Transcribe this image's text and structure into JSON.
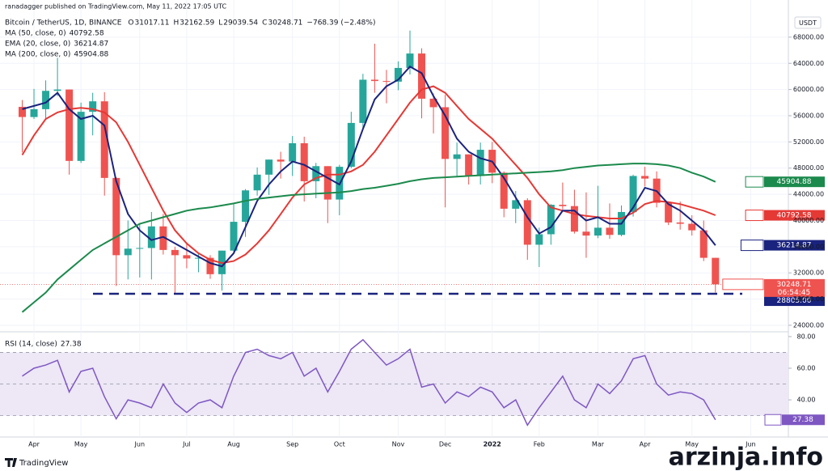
{
  "header": {
    "publisher": "ranadagger published on TradingView.com, May 11, 2022 17:05 UTC",
    "symbol": "Bitcoin / TetherUS, 1D, BINANCE",
    "ohlc": [
      {
        "label": "O",
        "value": "31017.11"
      },
      {
        "label": "H",
        "value": "32162.59"
      },
      {
        "label": "L",
        "value": "29039.54"
      },
      {
        "label": "C",
        "value": "30248.71"
      }
    ],
    "change": "−768.39 (−2.48%)",
    "currency": "USDT",
    "logo": "TradingView",
    "watermark": "arzinja.info"
  },
  "chart_data": [
    {
      "type": "candlestick",
      "categories": [
        null,
        "Apr",
        null,
        null,
        null,
        "May",
        null,
        null,
        null,
        null,
        "Jun",
        null,
        null,
        null,
        "Jul",
        null,
        null,
        null,
        "Aug",
        null,
        null,
        null,
        null,
        "Sep",
        null,
        null,
        null,
        "Oct",
        null,
        null,
        null,
        null,
        "Nov",
        null,
        null,
        null,
        "Dec",
        null,
        null,
        null,
        "2022",
        null,
        null,
        null,
        "Feb",
        null,
        null,
        null,
        null,
        "Mar",
        null,
        null,
        null,
        "Apr",
        null,
        null,
        null,
        "May",
        null,
        null,
        null,
        null,
        "Jun"
      ],
      "open": [
        57350,
        55800,
        57000,
        59800,
        60000,
        49100,
        56600,
        58200,
        46500,
        34700,
        35700,
        35800,
        39100,
        35500,
        34700,
        34200,
        34300,
        31800,
        35400,
        39800,
        44600,
        47000,
        49300,
        49000,
        51800,
        46000,
        48300,
        43200,
        48200,
        54900,
        61500,
        61300,
        61200,
        63300,
        65500,
        58600,
        57300,
        49400,
        50100,
        46800,
        50800,
        47300,
        41800,
        43100,
        36300,
        37900,
        42400,
        42200,
        38300,
        37700,
        38900,
        37800,
        41300,
        46800,
        46400,
        42700,
        39700,
        39500,
        38500,
        34300,
        null,
        null,
        null
      ],
      "high": [
        58400,
        60100,
        61400,
        64850,
        60000,
        58000,
        59500,
        59600,
        46600,
        40000,
        39500,
        41300,
        41000,
        36000,
        36600,
        35100,
        34700,
        35400,
        42600,
        44800,
        48100,
        49300,
        50500,
        52900,
        52800,
        48800,
        48300,
        48500,
        56600,
        62400,
        67000,
        63000,
        64300,
        69000,
        66300,
        59400,
        59200,
        51900,
        50100,
        51900,
        52000,
        47500,
        44500,
        43400,
        38900,
        42500,
        45800,
        44700,
        44300,
        45300,
        42600,
        42300,
        47000,
        48200,
        47500,
        42400,
        42900,
        40800,
        40000,
        34300,
        null,
        null,
        null
      ],
      "low": [
        50400,
        55500,
        55500,
        59000,
        47000,
        48800,
        53000,
        43800,
        30000,
        31000,
        31300,
        31000,
        34800,
        28800,
        32700,
        32100,
        31100,
        29300,
        35200,
        37500,
        43800,
        43900,
        46400,
        46800,
        42900,
        43400,
        39600,
        40800,
        48000,
        53900,
        59500,
        57900,
        59900,
        62300,
        55600,
        53300,
        42000,
        46700,
        45500,
        45500,
        45700,
        40500,
        39600,
        34000,
        32900,
        36300,
        41700,
        38000,
        34300,
        37300,
        37200,
        37600,
        40600,
        45200,
        42000,
        39300,
        38600,
        37700,
        33800,
        29000,
        null,
        null,
        null
      ],
      "close": [
        55800,
        57000,
        59800,
        60000,
        49100,
        56600,
        58200,
        46500,
        34700,
        35700,
        35800,
        39100,
        35500,
        34700,
        34200,
        34300,
        31800,
        35400,
        39800,
        44600,
        47000,
        49300,
        49000,
        51800,
        46000,
        48300,
        43200,
        48200,
        54900,
        61500,
        61300,
        61200,
        63300,
        65500,
        58600,
        57300,
        49400,
        50100,
        46800,
        50800,
        47300,
        41800,
        43100,
        36300,
        37900,
        42400,
        42200,
        38300,
        37700,
        38900,
        37800,
        41300,
        46800,
        46400,
        42700,
        39700,
        39500,
        38500,
        34300,
        30248.71,
        null,
        null,
        null
      ],
      "up_color": "#26a69a",
      "down_color": "#ef5350",
      "series": [
        {
          "name": "MA (50, close, 0)",
          "legend_value": "40792.58",
          "color": "#e53935",
          "values": [
            50000,
            53000,
            55500,
            56500,
            57000,
            57200,
            57000,
            56500,
            55000,
            52000,
            48500,
            45000,
            41500,
            38500,
            36500,
            35000,
            34000,
            33500,
            33800,
            34800,
            36500,
            38500,
            41000,
            43500,
            45500,
            46500,
            47000,
            47000,
            47500,
            48500,
            50500,
            53000,
            55500,
            58000,
            60000,
            60500,
            59500,
            57500,
            55500,
            54000,
            52500,
            50500,
            48500,
            46500,
            44000,
            42000,
            41500,
            41000,
            40700,
            40500,
            40300,
            40300,
            41200,
            42500,
            43000,
            42800,
            42500,
            42000,
            41500,
            40792.58,
            null,
            null,
            null
          ]
        },
        {
          "name": "EMA (20, close, 0)",
          "legend_value": "36214.87",
          "color": "#1a237e",
          "values": [
            57000,
            57500,
            58000,
            59500,
            57000,
            55500,
            56000,
            54500,
            46000,
            41000,
            38500,
            37000,
            37500,
            36500,
            35500,
            34500,
            33500,
            33000,
            35000,
            39000,
            43000,
            45500,
            47500,
            49000,
            48500,
            47500,
            46500,
            45500,
            49000,
            54000,
            58500,
            60500,
            61500,
            63500,
            62500,
            59000,
            56000,
            52500,
            50500,
            49500,
            49000,
            46500,
            43500,
            40500,
            38000,
            39000,
            41500,
            41500,
            40000,
            40500,
            39500,
            39500,
            42000,
            45000,
            44500,
            42500,
            41500,
            40000,
            38500,
            36214.87,
            null,
            null,
            null
          ]
        },
        {
          "name": "MA (200, close, 0)",
          "legend_value": "45904.88",
          "color": "#1b8a4c",
          "values": [
            26000,
            27500,
            29000,
            31000,
            32500,
            34000,
            35500,
            36500,
            37500,
            38500,
            39500,
            40000,
            40500,
            41000,
            41500,
            41800,
            42000,
            42300,
            42600,
            43000,
            43300,
            43500,
            43700,
            43900,
            44000,
            44100,
            44200,
            44300,
            44500,
            44800,
            45000,
            45300,
            45600,
            46000,
            46300,
            46500,
            46600,
            46700,
            46800,
            46900,
            47000,
            47100,
            47200,
            47300,
            47400,
            47500,
            47700,
            48000,
            48200,
            48400,
            48500,
            48600,
            48700,
            48700,
            48600,
            48400,
            48000,
            47300,
            46700,
            45904.88,
            null,
            null,
            null
          ]
        }
      ],
      "ylim": [
        23250,
        71200
      ],
      "yticks": [
        {
          "value": 24000,
          "label": "24000.00"
        },
        {
          "value": 28000,
          "label": "28000.00"
        },
        {
          "value": 32000,
          "label": "32000.00"
        },
        {
          "value": 36000,
          "label": "36000.00"
        },
        {
          "value": 40000,
          "label": "40000.00"
        },
        {
          "value": 44000,
          "label": "44000.00"
        },
        {
          "value": 48000,
          "label": "48000.00"
        },
        {
          "value": 52000,
          "label": "52000.00"
        },
        {
          "value": 56000,
          "label": "56000.00"
        },
        {
          "value": 60000,
          "label": "60000.00"
        },
        {
          "value": 64000,
          "label": "64000.00"
        },
        {
          "value": 68000,
          "label": "68000.00"
        }
      ],
      "price_tags": [
        {
          "name": "MA",
          "value": 45904.88,
          "label": "45904.88",
          "color": "#1b8a4c"
        },
        {
          "name": "MA",
          "value": 40792.58,
          "label": "40792.58",
          "color": "#e53935"
        },
        {
          "name": "EMA",
          "value": 36214.87,
          "label": "36214.87",
          "color": "#1a237e"
        },
        {
          "name": "BTCUSDT",
          "value": 30248.71,
          "label": "30248.71",
          "countdown": "06:54:45",
          "color": "#ef5350"
        }
      ],
      "support": {
        "value": 28805,
        "label": "28805.00",
        "color": "#1a237e"
      },
      "grid": true
    },
    {
      "type": "line",
      "title": "RSI (14, close)",
      "legend_value": "27.38",
      "series": [
        {
          "name": "RSI",
          "color": "#7e57c2",
          "values": [
            55,
            60,
            62,
            65,
            45,
            58,
            60,
            42,
            28,
            40,
            38,
            35,
            50,
            38,
            32,
            38,
            40,
            35,
            55,
            70,
            72,
            68,
            66,
            70,
            55,
            60,
            45,
            58,
            72,
            78,
            70,
            62,
            66,
            72,
            48,
            50,
            38,
            45,
            42,
            48,
            45,
            35,
            40,
            24,
            35,
            45,
            55,
            40,
            35,
            50,
            44,
            52,
            66,
            68,
            50,
            43,
            45,
            44,
            40,
            27.38,
            null,
            null,
            null
          ]
        }
      ],
      "band": [
        30,
        70
      ],
      "midline": 50,
      "band_color": "#ede7f6",
      "tag": {
        "name": "RSI",
        "value": 27.38,
        "label": "27.38",
        "color": "#7e57c2"
      },
      "ylim": [
        16.5,
        82
      ],
      "yticks": [
        {
          "value": 40,
          "label": "40.00"
        },
        {
          "value": 60,
          "label": "60.00"
        },
        {
          "value": 80,
          "label": "80.00"
        }
      ],
      "grid": true
    }
  ]
}
